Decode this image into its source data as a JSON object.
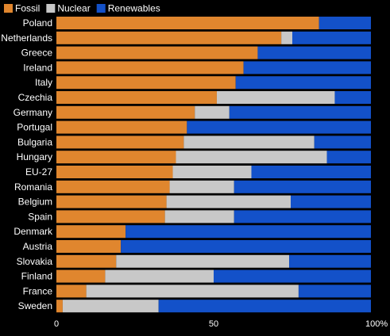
{
  "chart_data": {
    "type": "bar",
    "orientation": "horizontal",
    "stacked": true,
    "title": "",
    "xlabel": "",
    "ylabel": "",
    "xlim": [
      0,
      100
    ],
    "x_ticks": [
      {
        "value": 0,
        "label": "0"
      },
      {
        "value": 50,
        "label": "50"
      },
      {
        "value": 100,
        "label": "100%"
      }
    ],
    "grid": false,
    "legend_position": "top-left",
    "categories": [
      "Poland",
      "Netherlands",
      "Greece",
      "Ireland",
      "Italy",
      "Czechia",
      "Germany",
      "Portugal",
      "Bulgaria",
      "Hungary",
      "EU-27",
      "Romania",
      "Belgium",
      "Spain",
      "Denmark",
      "Austria",
      "Slovakia",
      "Finland",
      "France",
      "Sweden"
    ],
    "series": [
      {
        "name": "Fossil",
        "color": "#e0862e",
        "values": [
          83.5,
          71.5,
          64,
          59.5,
          57,
          51,
          44,
          41.5,
          40.5,
          38,
          37,
          36,
          35,
          34.5,
          22,
          20.5,
          19,
          15.5,
          9.5,
          2
        ]
      },
      {
        "name": "Nuclear",
        "color": "#c8c8c8",
        "values": [
          0,
          3.5,
          0,
          0,
          0,
          37.5,
          11,
          0,
          41.5,
          48,
          25,
          20.5,
          39.5,
          22,
          0,
          0,
          55,
          34.5,
          67.5,
          30.5
        ]
      },
      {
        "name": "Renewables",
        "color": "#1351c9",
        "values": [
          16.5,
          25,
          36,
          40.5,
          43,
          11.5,
          45,
          58.5,
          18,
          14,
          38,
          43.5,
          25.5,
          43.5,
          78,
          79.5,
          26,
          50,
          23,
          67.5
        ]
      }
    ]
  },
  "style": {
    "background": "#000000",
    "text_color": "#ffffff",
    "bar_separator": "#000000"
  }
}
